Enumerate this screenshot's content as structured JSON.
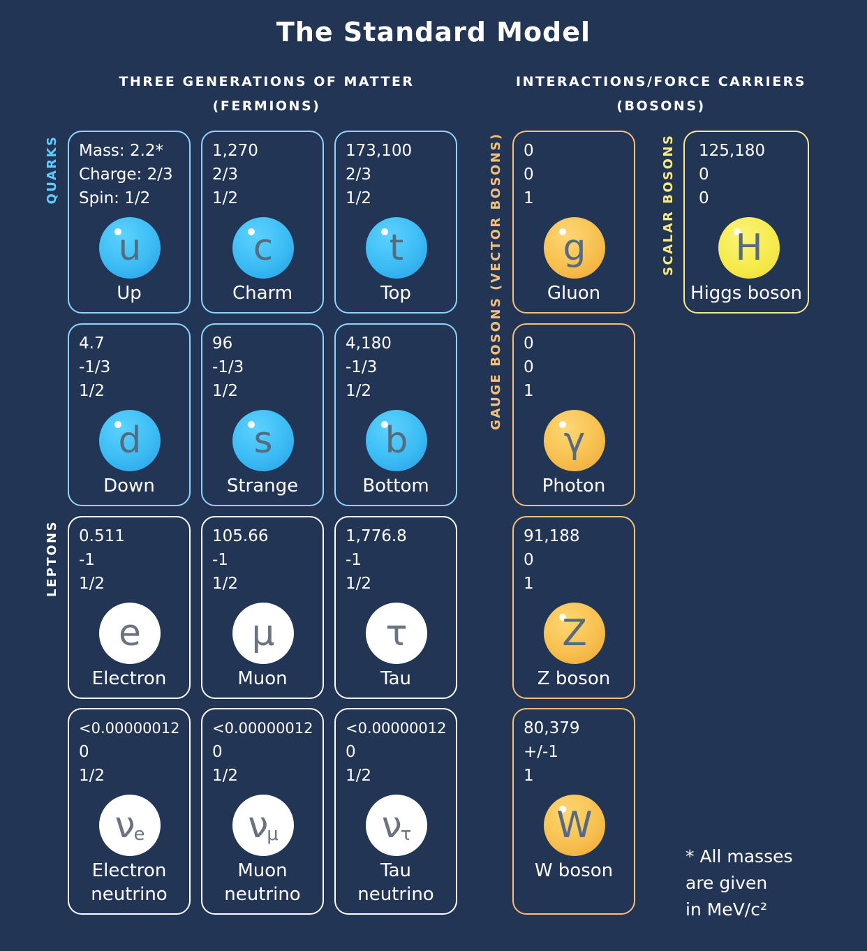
{
  "title": "The Standard Model",
  "headers": {
    "fermions_line1": "THREE GENERATIONS OF MATTER",
    "fermions_line2": "(FERMIONS)",
    "bosons_line1": "INTERACTIONS/FORCE CARRIERS",
    "bosons_line2": "(BOSONS)"
  },
  "side_labels": {
    "quarks": "QUARKS",
    "leptons": "LEPTONS",
    "gauge": "GAUGE BOSONS (VECTOR BOSONS)",
    "scalar": "SCALAR BOSONS"
  },
  "colors": {
    "background": "#223554",
    "quark": "#8fd3ff",
    "lepton": "#ffffff",
    "gauge": "#f4c07c",
    "scalar": "#f6ea88"
  },
  "particles": {
    "up": {
      "mass": "Mass: 2.2*",
      "charge": "Charge: 2/3",
      "spin": "Spin: 1/2",
      "symbol": "u",
      "name": "Up"
    },
    "charm": {
      "mass": "1,270",
      "charge": "2/3",
      "spin": "1/2",
      "symbol": "c",
      "name": "Charm"
    },
    "top": {
      "mass": "173,100",
      "charge": "2/3",
      "spin": "1/2",
      "symbol": "t",
      "name": "Top"
    },
    "down": {
      "mass": "4.7",
      "charge": "-1/3",
      "spin": "1/2",
      "symbol": "d",
      "name": "Down"
    },
    "strange": {
      "mass": "96",
      "charge": "-1/3",
      "spin": "1/2",
      "symbol": "s",
      "name": "Strange"
    },
    "bottom": {
      "mass": "4,180",
      "charge": "-1/3",
      "spin": "1/2",
      "symbol": "b",
      "name": "Bottom"
    },
    "electron": {
      "mass": "0.511",
      "charge": "-1",
      "spin": "1/2",
      "symbol": "e",
      "name": "Electron"
    },
    "muon": {
      "mass": "105.66",
      "charge": "-1",
      "spin": "1/2",
      "symbol": "μ",
      "name": "Muon"
    },
    "tau": {
      "mass": "1,776.8",
      "charge": "-1",
      "spin": "1/2",
      "symbol": "τ",
      "name": "Tau"
    },
    "nu_e": {
      "mass": "<0.00000012",
      "charge": "0",
      "spin": "1/2",
      "symbol": "ν",
      "sub": "e",
      "name1": "Electron",
      "name2": "neutrino"
    },
    "nu_mu": {
      "mass": "<0.00000012",
      "charge": "0",
      "spin": "1/2",
      "symbol": "ν",
      "sub": "μ",
      "name1": "Muon",
      "name2": "neutrino"
    },
    "nu_tau": {
      "mass": "<0.00000012",
      "charge": "0",
      "spin": "1/2",
      "symbol": "ν",
      "sub": "τ",
      "name1": "Tau",
      "name2": "neutrino"
    },
    "gluon": {
      "mass": "0",
      "charge": "0",
      "spin": "1",
      "symbol": "g",
      "name": "Gluon"
    },
    "photon": {
      "mass": "0",
      "charge": "0",
      "spin": "1",
      "symbol": "γ",
      "name": "Photon"
    },
    "z": {
      "mass": "91,188",
      "charge": "0",
      "spin": "1",
      "symbol": "Z",
      "name": "Z boson"
    },
    "w": {
      "mass": "80,379",
      "charge": "+/-1",
      "spin": "1",
      "symbol": "W",
      "name": "W boson"
    },
    "higgs": {
      "mass": "125,180",
      "charge": "0",
      "spin": "0",
      "symbol": "H",
      "name": "Higgs boson"
    }
  },
  "note": {
    "line1": "* All masses",
    "line2": "are given",
    "line3": "in MeV/c²"
  }
}
